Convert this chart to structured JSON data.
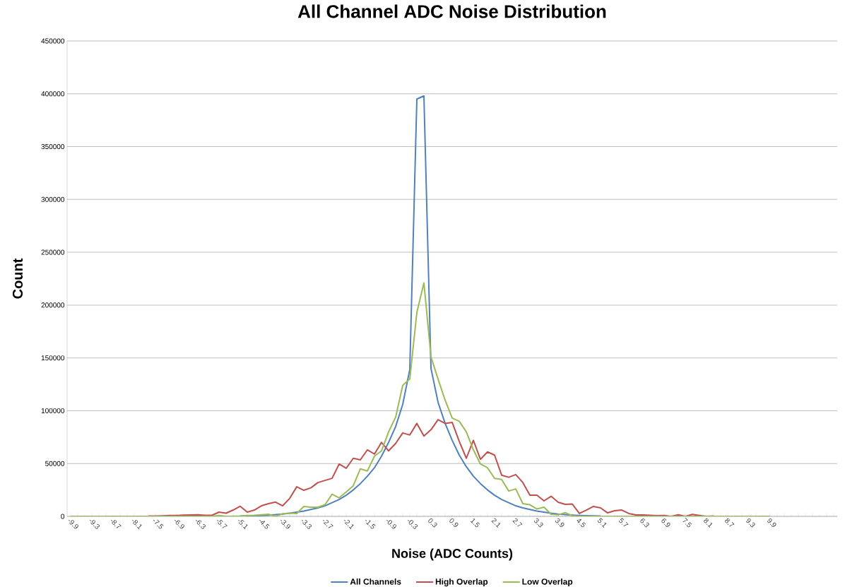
{
  "chart_data": {
    "type": "line",
    "title": "All Channel ADC Noise Distribution",
    "xlabel": "Noise (ADC Counts)",
    "ylabel": "Count",
    "categories": [
      "-9.9",
      null,
      null,
      "-9.3",
      null,
      null,
      "-8.7",
      null,
      null,
      "-8.1",
      null,
      null,
      "-7.5",
      null,
      null,
      "-6.9",
      null,
      null,
      "-6.3",
      null,
      null,
      "-5.7",
      null,
      null,
      "-5.1",
      null,
      null,
      "-4.5",
      null,
      null,
      "-3.9",
      null,
      null,
      "-3.3",
      null,
      null,
      "-2.7",
      null,
      null,
      "-2.1",
      null,
      null,
      "-1.5",
      null,
      null,
      "-0.9",
      null,
      null,
      "-0.3",
      null,
      null,
      "0.3",
      null,
      null,
      "0.9",
      null,
      null,
      "1.5",
      null,
      null,
      "2.1",
      null,
      null,
      "2.7",
      null,
      null,
      "3.3",
      null,
      null,
      "3.9",
      null,
      null,
      "4.5",
      null,
      null,
      "5.1",
      null,
      null,
      "5.7",
      null,
      null,
      "6.3",
      null,
      null,
      "6.9",
      null,
      null,
      "7.5",
      null,
      null,
      "8.1",
      null,
      null,
      "8.7",
      null,
      null,
      "9.3",
      null,
      null,
      "9.9",
      null,
      null,
      null,
      null,
      null,
      null,
      null,
      null,
      null
    ],
    "series": [
      {
        "name": "All Channels",
        "color": "#4f81bd",
        "values": [
          null,
          null,
          null,
          null,
          null,
          null,
          null,
          null,
          null,
          null,
          null,
          null,
          null,
          null,
          null,
          null,
          null,
          null,
          null,
          null,
          null,
          null,
          null,
          null,
          400,
          500,
          700,
          900,
          1200,
          1600,
          2200,
          3000,
          4000,
          5000,
          6500,
          8000,
          10000,
          13000,
          16000,
          20000,
          25000,
          31000,
          38000,
          46000,
          57000,
          70000,
          85000,
          106000,
          139000,
          395000,
          398000,
          140000,
          108000,
          88000,
          72000,
          58000,
          47000,
          38000,
          31000,
          25000,
          20000,
          16000,
          13000,
          10000,
          8000,
          6500,
          5000,
          4000,
          3000,
          2200,
          1600,
          1200,
          900,
          700,
          500,
          400,
          null,
          null,
          null,
          null,
          null,
          null,
          null,
          null,
          null,
          null,
          null,
          null,
          null,
          null,
          null,
          null,
          null,
          null,
          null,
          null,
          null,
          null,
          null,
          null,
          null,
          null,
          null,
          null,
          null,
          null,
          null,
          null,
          null
        ]
      },
      {
        "name": "High Overlap",
        "color": "#c0504d",
        "values": [
          null,
          null,
          null,
          null,
          null,
          null,
          null,
          null,
          null,
          null,
          null,
          300,
          300,
          500,
          800,
          800,
          1200,
          1300,
          1500,
          1000,
          1000,
          4000,
          3000,
          6000,
          9600,
          4000,
          6000,
          10000,
          12000,
          13500,
          10000,
          17000,
          28000,
          24700,
          27000,
          32000,
          34000,
          36000,
          49500,
          45500,
          55000,
          53500,
          63000,
          59000,
          70000,
          62000,
          69000,
          79000,
          77000,
          88000,
          76000,
          82000,
          91500,
          88000,
          89000,
          71000,
          55000,
          72000,
          54000,
          61000,
          58000,
          39000,
          37000,
          39500,
          32000,
          20000,
          20000,
          14700,
          19000,
          13400,
          11400,
          11700,
          2700,
          6000,
          9400,
          8000,
          3300,
          5400,
          6000,
          2700,
          1300,
          1300,
          1000,
          700,
          900,
          0,
          1500,
          0,
          1800,
          900,
          0,
          300,
          null,
          null,
          null,
          null,
          null,
          null,
          null,
          null,
          null,
          null,
          null,
          null,
          null,
          null,
          null,
          null,
          null
        ]
      },
      {
        "name": "Low Overlap",
        "color": "#9bbb59",
        "values": [
          0,
          0,
          0,
          0,
          0,
          0,
          0,
          0,
          0,
          0,
          0,
          0,
          0,
          0,
          0,
          0,
          0,
          0,
          0,
          0,
          0,
          800,
          0,
          200,
          400,
          800,
          1000,
          1500,
          2000,
          0,
          2500,
          3000,
          2700,
          9400,
          8700,
          8700,
          11000,
          21000,
          17500,
          23000,
          29000,
          45000,
          43000,
          57000,
          62000,
          80000,
          94000,
          124000,
          130000,
          193000,
          221000,
          151000,
          130000,
          110000,
          93000,
          90000,
          80000,
          63000,
          49500,
          46000,
          36000,
          35000,
          24000,
          26000,
          12000,
          11000,
          7000,
          8700,
          2000,
          1500,
          3500,
          500,
          0,
          0,
          0,
          0,
          0,
          0,
          0,
          0,
          0,
          0,
          0,
          0,
          0,
          0,
          0,
          0,
          0,
          0,
          0,
          0,
          0,
          0,
          0,
          0,
          0,
          0,
          0,
          0,
          null,
          null,
          null,
          null,
          null,
          null,
          null,
          null,
          null
        ]
      }
    ],
    "ylim": [
      0,
      450000
    ],
    "yticks": [
      0,
      50000,
      100000,
      150000,
      200000,
      250000,
      300000,
      350000,
      400000,
      450000
    ],
    "grid": "y",
    "legend": "bottom",
    "marker": "none"
  }
}
